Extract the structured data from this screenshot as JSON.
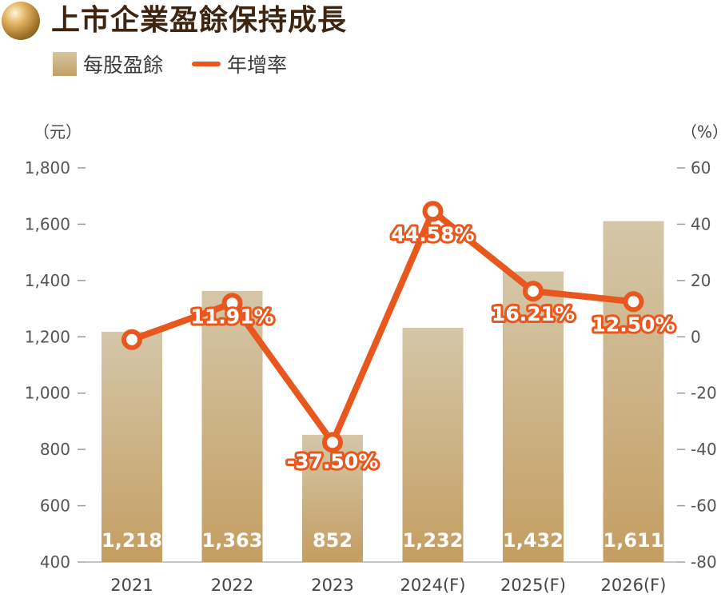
{
  "header": {
    "title": "上市企業盈餘保持成長",
    "legend_bar": "每股盈餘",
    "legend_line": "年增率"
  },
  "chart_data": {
    "type": "bar",
    "title": "上市企業盈餘保持成長",
    "categories": [
      "2021",
      "2022",
      "2023",
      "2024(F)",
      "2025(F)",
      "2026(F)"
    ],
    "series": [
      {
        "name": "每股盈餘",
        "type": "bar",
        "axis": "left",
        "values": [
          1218,
          1363,
          852,
          1232,
          1432,
          1611
        ],
        "labels": [
          "1,218",
          "1,363",
          "852",
          "1,232",
          "1,432",
          "1,611"
        ]
      },
      {
        "name": "年增率",
        "type": "line",
        "axis": "right",
        "values": [
          -1,
          11.91,
          -37.5,
          44.58,
          16.21,
          12.5
        ],
        "labels": [
          "",
          "11.91%",
          "-37.50%",
          "44.58%",
          "16.21%",
          "12.50%"
        ]
      }
    ],
    "left_axis": {
      "unit": "（元）",
      "range": [
        400,
        1800
      ],
      "ticks": [
        "400",
        "600",
        "800",
        "1,000",
        "1,200",
        "1,400",
        "1,600",
        "1,800"
      ]
    },
    "right_axis": {
      "unit": "（%）",
      "range": [
        -80,
        60
      ],
      "ticks": [
        "-80",
        "-60",
        "-40",
        "-20",
        "0",
        "20",
        "40",
        "60"
      ]
    },
    "grid": false,
    "legend_position": "top-left",
    "colors": {
      "bar_top": "#d4c6a8",
      "bar_bottom": "#c49e62",
      "line": "#e8571e",
      "title": "#3d2512"
    }
  }
}
